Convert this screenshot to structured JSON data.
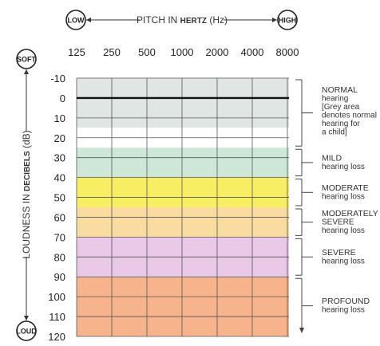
{
  "pitch_axis": {
    "low_label": "LOW",
    "high_label": "HIGH",
    "title_part1": "PITCH IN ",
    "title_bold": "HERTZ",
    "title_part2": " (Hz)"
  },
  "loudness_axis": {
    "soft_label": "SOFT",
    "loud_label": "LOUD",
    "title_part1": "LOUDNESS IN ",
    "title_bold": "DECIBELS",
    "title_part2": " (dB)"
  },
  "categories": [
    {
      "id": "normal",
      "range": [
        -10,
        25
      ],
      "head": "NORMAL",
      "lines": [
        "hearing",
        "[Grey area",
        "denotes normal",
        "hearing for",
        "a child]"
      ]
    },
    {
      "id": "mild",
      "range": [
        25,
        40
      ],
      "head": "MILD",
      "lines": [
        "hearing loss"
      ]
    },
    {
      "id": "moderate",
      "range": [
        40,
        55
      ],
      "head": "MODERATE",
      "lines": [
        "hearing loss"
      ]
    },
    {
      "id": "moderately-severe",
      "range": [
        55,
        70
      ],
      "head": "MODERATELY",
      "lines": [
        "SEVERE",
        "hearing loss"
      ]
    },
    {
      "id": "severe",
      "range": [
        70,
        90
      ],
      "head": "SEVERE",
      "lines": [
        "hearing loss"
      ]
    },
    {
      "id": "profound",
      "range": [
        90,
        120
      ],
      "head": "PROFOUND",
      "lines": [
        "hearing loss"
      ]
    }
  ],
  "chart_data": {
    "type": "heatmap",
    "x_ticks": [
      "125",
      "250",
      "500",
      "1000",
      "2000",
      "4000",
      "8000"
    ],
    "y_ticks": [
      "-10",
      "0",
      "10",
      "20",
      "30",
      "40",
      "50",
      "60",
      "70",
      "80",
      "90",
      "100",
      "110",
      "120"
    ],
    "ylim": [
      -10,
      120
    ],
    "y_inverted": true,
    "grid": true,
    "reference_line_db": 0,
    "bands": [
      {
        "from": -10,
        "to": 15,
        "color": "#dfe6e3"
      },
      {
        "from": 15,
        "to": 25,
        "color": "#ffffff"
      },
      {
        "from": 25,
        "to": 40,
        "color": "#cde8d6"
      },
      {
        "from": 40,
        "to": 55,
        "color": "#f8ee64"
      },
      {
        "from": 55,
        "to": 70,
        "color": "#fbdca0"
      },
      {
        "from": 70,
        "to": 90,
        "color": "#e9c8e8"
      },
      {
        "from": 90,
        "to": 120,
        "color": "#f7b48c"
      }
    ]
  }
}
